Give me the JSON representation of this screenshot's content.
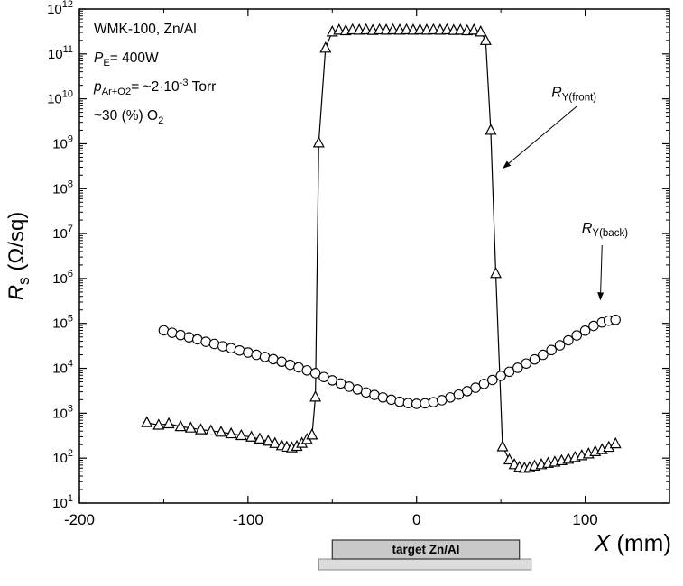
{
  "chart_data": {
    "type": "scatter",
    "title": "",
    "xlabel": "X (mm)",
    "ylabel": "Rs (Ω/sq)",
    "xlabel_segments": [
      {
        "t": "X",
        "s": "i"
      },
      {
        "t": " (mm)",
        "s": "n"
      }
    ],
    "ylabel_segments": [
      {
        "t": "R",
        "s": "i"
      },
      {
        "t": "s",
        "s": "sub"
      },
      {
        "t": " (Ω/sq)",
        "s": "n"
      }
    ],
    "xlim": [
      -200,
      150
    ],
    "ylog": true,
    "y_exp_range": [
      1,
      12
    ],
    "x_major_ticks": [
      -200,
      -100,
      0,
      100
    ],
    "x_minor_ticks": [
      -150,
      -50,
      50,
      150
    ],
    "grid": false,
    "colors": {
      "line": "#000000",
      "marker_fill": "#ffffff",
      "target_fill": "#c9c9c9",
      "target_base_fill": "#dcdcdc",
      "target_stroke": "#333333"
    },
    "info_lines": [
      [
        {
          "t": "WMK-100, Zn/Al",
          "s": "n"
        }
      ],
      [
        {
          "t": "P",
          "s": "i"
        },
        {
          "t": "E",
          "s": "sub"
        },
        {
          "t": "= 400W",
          "s": "n"
        }
      ],
      [
        {
          "t": "p",
          "s": "i"
        },
        {
          "t": "Ar+O2",
          "s": "sub"
        },
        {
          "t": "= ~2·10",
          "s": "n"
        },
        {
          "t": "-3",
          "s": "sup"
        },
        {
          "t": " Torr",
          "s": "n"
        }
      ],
      [
        {
          "t": "~30 (%) O",
          "s": "n"
        },
        {
          "t": "2",
          "s": "sub"
        }
      ]
    ],
    "series": [
      {
        "name": "R_Y(front)",
        "marker": "triangle",
        "label_segments": [
          {
            "t": "R",
            "s": "i"
          },
          {
            "t": "Y(front)",
            "s": "sub"
          }
        ],
        "points": [
          [
            -160,
            620
          ],
          [
            -153,
            545
          ],
          [
            -147,
            585
          ],
          [
            -140,
            505
          ],
          [
            -134,
            470
          ],
          [
            -128,
            430
          ],
          [
            -122,
            405
          ],
          [
            -116,
            380
          ],
          [
            -110,
            350
          ],
          [
            -104,
            320
          ],
          [
            -98,
            295
          ],
          [
            -93,
            268
          ],
          [
            -88,
            240
          ],
          [
            -84,
            213
          ],
          [
            -80,
            190
          ],
          [
            -77,
            176
          ],
          [
            -74,
            170
          ],
          [
            -71,
            184
          ],
          [
            -68,
            215
          ],
          [
            -65,
            262
          ],
          [
            -62,
            330
          ],
          [
            -60,
            2300
          ],
          [
            -58,
            1050000000.0
          ],
          [
            -54,
            135000000000.0
          ],
          [
            -50,
            310000000000.0
          ],
          [
            -46,
            340000000000.0
          ],
          [
            -42,
            330000000000.0
          ],
          [
            -38,
            345000000000.0
          ],
          [
            -34,
            340000000000.0
          ],
          [
            -30,
            345000000000.0
          ],
          [
            -26,
            335000000000.0
          ],
          [
            -22,
            345000000000.0
          ],
          [
            -18,
            340000000000.0
          ],
          [
            -14,
            345000000000.0
          ],
          [
            -10,
            340000000000.0
          ],
          [
            -6,
            345000000000.0
          ],
          [
            -2,
            340000000000.0
          ],
          [
            2,
            345000000000.0
          ],
          [
            6,
            340000000000.0
          ],
          [
            10,
            345000000000.0
          ],
          [
            14,
            340000000000.0
          ],
          [
            18,
            345000000000.0
          ],
          [
            22,
            335000000000.0
          ],
          [
            26,
            340000000000.0
          ],
          [
            30,
            330000000000.0
          ],
          [
            34,
            340000000000.0
          ],
          [
            38,
            310000000000.0
          ],
          [
            41,
            200000000000.0
          ],
          [
            44,
            2000000000.0
          ],
          [
            47,
            1300000.0
          ],
          [
            51,
            180
          ],
          [
            55,
            92
          ],
          [
            58,
            72
          ],
          [
            61,
            63
          ],
          [
            64,
            60
          ],
          [
            67,
            62
          ],
          [
            70,
            67
          ],
          [
            74,
            72
          ],
          [
            78,
            77
          ],
          [
            82,
            82
          ],
          [
            86,
            88
          ],
          [
            90,
            95
          ],
          [
            94,
            104
          ],
          [
            98,
            114
          ],
          [
            102,
            125
          ],
          [
            106,
            140
          ],
          [
            110,
            155
          ],
          [
            114,
            175
          ],
          [
            118,
            210
          ]
        ]
      },
      {
        "name": "R_Y(back)",
        "marker": "circle",
        "label_segments": [
          {
            "t": "R",
            "s": "i"
          },
          {
            "t": "Y(back)",
            "s": "sub"
          }
        ],
        "points": [
          [
            -150,
            70000
          ],
          [
            -145,
            62000
          ],
          [
            -140,
            55000
          ],
          [
            -135,
            49000
          ],
          [
            -130,
            44000
          ],
          [
            -125,
            39000
          ],
          [
            -120,
            35000
          ],
          [
            -115,
            31000
          ],
          [
            -110,
            28000
          ],
          [
            -105,
            25000
          ],
          [
            -100,
            22500
          ],
          [
            -95,
            20000
          ],
          [
            -90,
            18000
          ],
          [
            -85,
            16000
          ],
          [
            -80,
            14000
          ],
          [
            -75,
            12000
          ],
          [
            -70,
            10500
          ],
          [
            -65,
            9000
          ],
          [
            -60,
            7800
          ],
          [
            -55,
            6400
          ],
          [
            -50,
            5400
          ],
          [
            -45,
            4600
          ],
          [
            -40,
            3900
          ],
          [
            -35,
            3400
          ],
          [
            -30,
            2900
          ],
          [
            -25,
            2550
          ],
          [
            -20,
            2250
          ],
          [
            -15,
            2000
          ],
          [
            -10,
            1800
          ],
          [
            -5,
            1680
          ],
          [
            0,
            1620
          ],
          [
            5,
            1660
          ],
          [
            10,
            1760
          ],
          [
            15,
            1950
          ],
          [
            20,
            2250
          ],
          [
            25,
            2600
          ],
          [
            30,
            3100
          ],
          [
            35,
            3700
          ],
          [
            40,
            4500
          ],
          [
            45,
            5500
          ],
          [
            50,
            6800
          ],
          [
            55,
            8400
          ],
          [
            60,
            10300
          ],
          [
            65,
            12800
          ],
          [
            70,
            15800
          ],
          [
            75,
            20000
          ],
          [
            80,
            25500
          ],
          [
            85,
            32500
          ],
          [
            90,
            42000
          ],
          [
            95,
            54000
          ],
          [
            100,
            69000
          ],
          [
            105,
            88000
          ],
          [
            110,
            105000
          ],
          [
            114,
            115000
          ],
          [
            118,
            120000
          ]
        ]
      }
    ],
    "annotations": [
      {
        "series": "R_Y(front)",
        "label_segments": [
          {
            "t": "R",
            "s": "i"
          },
          {
            "t": "Y(front)",
            "s": "sub"
          }
        ],
        "x": 80,
        "y": 11000000000.0,
        "arrow": {
          "x1": 95,
          "y1": 6800000000.0,
          "x2": 51.5,
          "y2": 290000000.0
        }
      },
      {
        "series": "R_Y(back)",
        "label_segments": [
          {
            "t": "R",
            "s": "i"
          },
          {
            "t": "Y(back)",
            "s": "sub"
          }
        ],
        "x": 98,
        "y": 10500000.0,
        "arrow": {
          "x1": 110,
          "y1": 5500000.0,
          "x2": 109,
          "y2": 340000.0
        }
      }
    ],
    "target": {
      "label": "target Zn/Al",
      "x_from": -50,
      "x_to": 61,
      "base_x_from": -58,
      "base_x_to": 68
    }
  }
}
